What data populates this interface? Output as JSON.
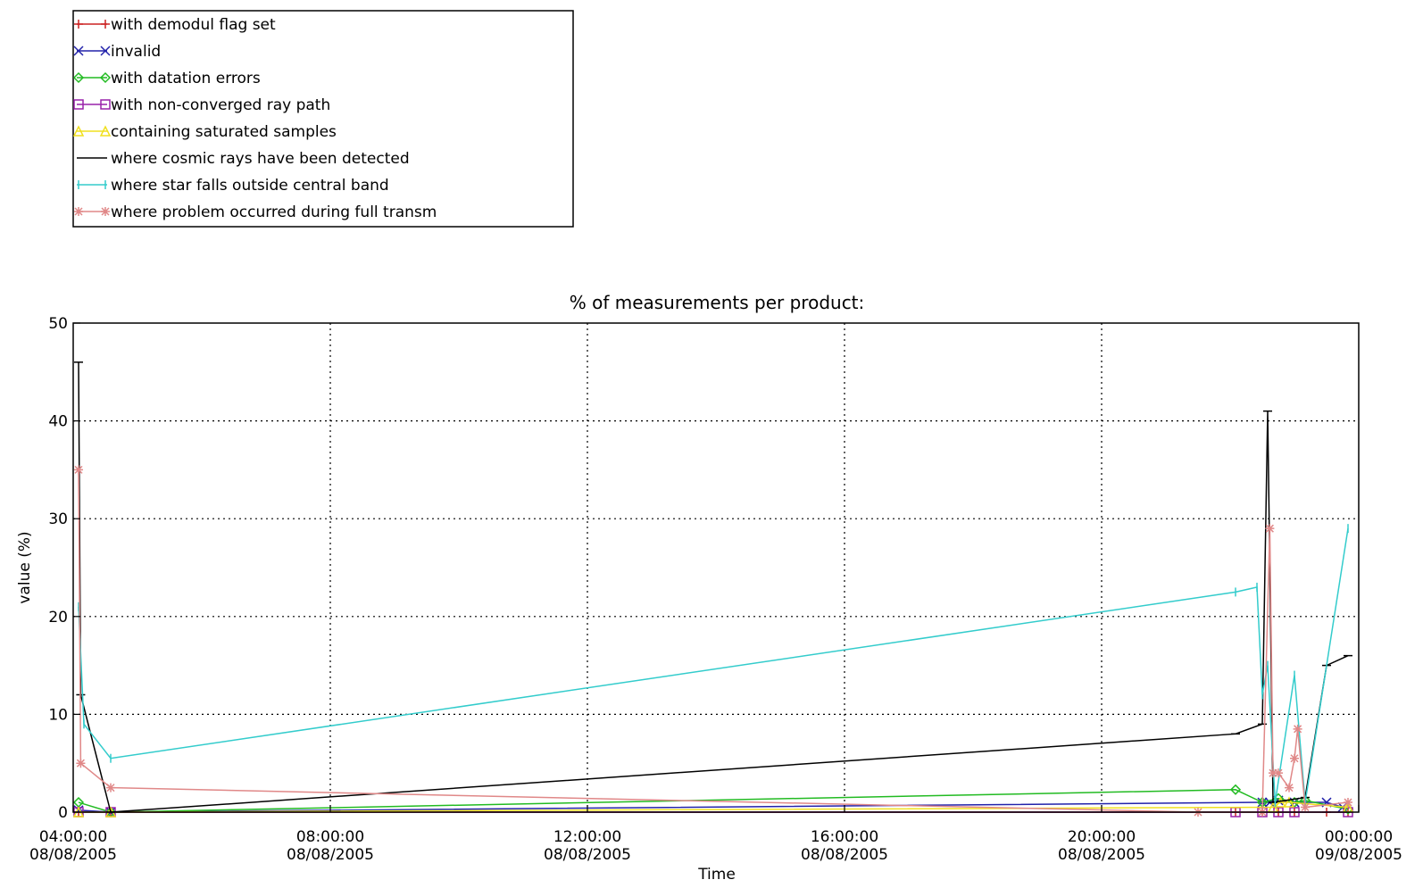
{
  "chart_data": {
    "type": "line",
    "title": "% of measurements per product:",
    "xlabel": "Time",
    "ylabel": "value (%)",
    "xlim": [
      "2005-08-08T04:00",
      "2005-08-09T00:00"
    ],
    "ylim": [
      0,
      50
    ],
    "yticks": [
      0,
      10,
      20,
      30,
      40,
      50
    ],
    "ytick_labels": [
      "0",
      "10",
      "20",
      "30",
      "40",
      "50"
    ],
    "xticks": [
      "2005-08-08T04:00",
      "2005-08-08T08:00",
      "2005-08-08T12:00",
      "2005-08-08T16:00",
      "2005-08-08T20:00",
      "2005-08-09T00:00"
    ],
    "xtick_labels": [
      [
        "04:00:00",
        "08/08/2005"
      ],
      [
        "08:00:00",
        "08/08/2005"
      ],
      [
        "12:00:00",
        "08/08/2005"
      ],
      [
        "16:00:00",
        "08/08/2005"
      ],
      [
        "20:00:00",
        "08/08/2005"
      ],
      [
        "00:00:00",
        "09/08/2005"
      ]
    ],
    "grid": true,
    "legend_position": "top-left, above plot",
    "series": [
      {
        "name": "with demodul flag set",
        "color": "#cc2222",
        "marker": "plus",
        "points": [
          [
            "2005-08-08T04:05",
            0
          ],
          [
            "2005-08-08T04:35",
            0
          ],
          [
            "2005-08-08T22:05",
            0
          ],
          [
            "2005-08-08T22:30",
            0
          ],
          [
            "2005-08-08T22:45",
            0
          ],
          [
            "2005-08-08T23:00",
            0
          ],
          [
            "2005-08-08T23:30",
            0
          ],
          [
            "2005-08-08T23:50",
            0
          ]
        ]
      },
      {
        "name": "invalid",
        "color": "#2222aa",
        "marker": "x",
        "points": [
          [
            "2005-08-08T04:05",
            0.2
          ],
          [
            "2005-08-08T04:35",
            0
          ],
          [
            "2005-08-08T22:30",
            1
          ],
          [
            "2005-08-08T22:37",
            1
          ],
          [
            "2005-08-08T22:45",
            1.2
          ],
          [
            "2005-08-08T23:00",
            1
          ],
          [
            "2005-08-08T23:30",
            1
          ],
          [
            "2005-08-08T23:45",
            0.5
          ]
        ]
      },
      {
        "name": "with datation errors",
        "color": "#22bb22",
        "marker": "diamond",
        "points": [
          [
            "2005-08-08T04:05",
            1
          ],
          [
            "2005-08-08T04:35",
            0
          ],
          [
            "2005-08-08T22:05",
            2.3
          ],
          [
            "2005-08-08T22:30",
            1
          ],
          [
            "2005-08-08T22:45",
            1.4
          ],
          [
            "2005-08-08T23:00",
            1
          ],
          [
            "2005-08-08T23:10",
            1.2
          ],
          [
            "2005-08-08T23:50",
            0.3
          ]
        ]
      },
      {
        "name": "with non-converged ray path",
        "color": "#9922aa",
        "marker": "square",
        "points": [
          [
            "2005-08-08T04:05",
            0
          ],
          [
            "2005-08-08T04:35",
            0
          ],
          [
            "2005-08-08T22:05",
            0
          ],
          [
            "2005-08-08T22:30",
            0
          ],
          [
            "2005-08-08T22:45",
            0
          ],
          [
            "2005-08-08T23:00",
            0
          ],
          [
            "2005-08-08T23:50",
            0
          ]
        ]
      },
      {
        "name": "containing saturated samples",
        "color": "#f0e020",
        "marker": "triangle",
        "points": [
          [
            "2005-08-08T04:05",
            0
          ],
          [
            "2005-08-08T04:35",
            0
          ],
          [
            "2005-08-08T22:40",
            0.5
          ],
          [
            "2005-08-08T22:47",
            1
          ],
          [
            "2005-08-08T22:55",
            1
          ],
          [
            "2005-08-08T23:50",
            0.5
          ]
        ]
      },
      {
        "name": "where cosmic rays have been detected",
        "color": "#000000",
        "marker": "none",
        "points": [
          [
            "2005-08-08T04:05",
            46
          ],
          [
            "2005-08-08T04:07",
            12
          ],
          [
            "2005-08-08T04:35",
            0
          ],
          [
            "2005-08-08T22:05",
            8
          ],
          [
            "2005-08-08T22:30",
            9
          ],
          [
            "2005-08-08T22:35",
            41
          ],
          [
            "2005-08-08T22:40",
            1
          ],
          [
            "2005-08-08T23:10",
            1.5
          ],
          [
            "2005-08-08T23:30",
            15
          ],
          [
            "2005-08-08T23:50",
            16
          ]
        ]
      },
      {
        "name": "where star falls outside central band",
        "color": "#33cccc",
        "marker": "vbar",
        "points": [
          [
            "2005-08-08T04:05",
            21
          ],
          [
            "2005-08-08T04:10",
            9
          ],
          [
            "2005-08-08T04:35",
            5.5
          ],
          [
            "2005-08-08T22:05",
            22.5
          ],
          [
            "2005-08-08T22:25",
            23
          ],
          [
            "2005-08-08T22:30",
            12
          ],
          [
            "2005-08-08T22:35",
            15
          ],
          [
            "2005-08-08T22:42",
            1
          ],
          [
            "2005-08-08T23:00",
            14
          ],
          [
            "2005-08-08T23:10",
            1
          ],
          [
            "2005-08-08T23:50",
            29
          ]
        ]
      },
      {
        "name": "where problem occurred during full transm",
        "color": "#e08888",
        "marker": "asterisk",
        "points": [
          [
            "2005-08-08T04:05",
            35
          ],
          [
            "2005-08-08T04:07",
            5
          ],
          [
            "2005-08-08T04:35",
            2.5
          ],
          [
            "2005-08-08T21:30",
            0
          ],
          [
            "2005-08-08T22:30",
            0
          ],
          [
            "2005-08-08T22:37",
            29
          ],
          [
            "2005-08-08T22:40",
            4
          ],
          [
            "2005-08-08T22:45",
            4
          ],
          [
            "2005-08-08T22:55",
            2.5
          ],
          [
            "2005-08-08T23:00",
            5.5
          ],
          [
            "2005-08-08T23:03",
            8.5
          ],
          [
            "2005-08-08T23:10",
            0.5
          ],
          [
            "2005-08-08T23:50",
            1
          ]
        ]
      }
    ]
  }
}
